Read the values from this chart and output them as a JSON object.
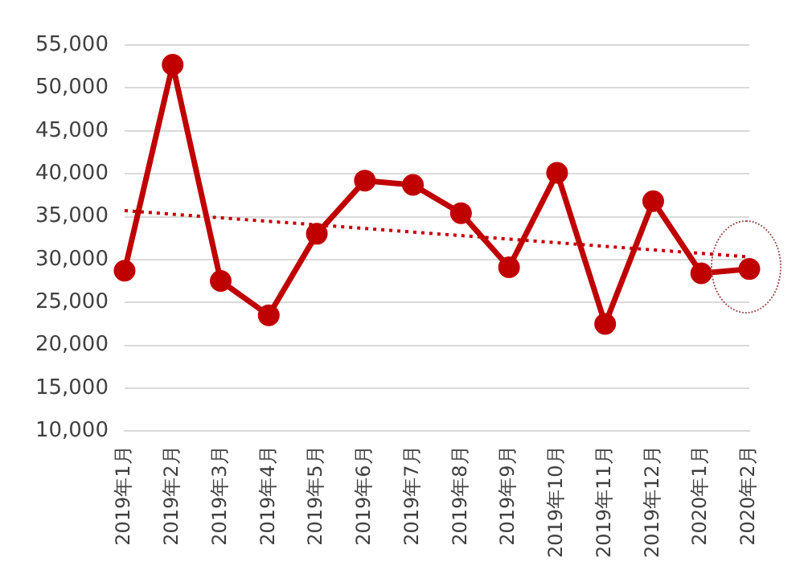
{
  "chart_data": {
    "type": "line",
    "categories": [
      "2019年1月",
      "2019年2月",
      "2019年3月",
      "2019年4月",
      "2019年5月",
      "2019年6月",
      "2019年7月",
      "2019年8月",
      "2019年9月",
      "2019年10月",
      "2019年11月",
      "2019年12月",
      "2020年1月",
      "2020年2月"
    ],
    "series": [
      {
        "color": "#c00000",
        "values": [
          28700,
          52700,
          27500,
          23500,
          33000,
          39200,
          38700,
          35400,
          29100,
          40100,
          22500,
          36800,
          28400,
          28900
        ],
        "marker": "circle",
        "line_style": "solid"
      },
      {
        "type": "line",
        "color": "#c00000",
        "values": [
          35700,
          null,
          null,
          null,
          null,
          null,
          null,
          null,
          null,
          null,
          null,
          null,
          null,
          30300
        ],
        "marker": "none",
        "line_style": "dotted"
      }
    ],
    "ylim": [
      10000,
      55000
    ],
    "yticks": [
      {
        "value": 10000,
        "label": "10,000"
      },
      {
        "value": 15000,
        "label": "15,000"
      },
      {
        "value": 20000,
        "label": "20,000"
      },
      {
        "value": 25000,
        "label": "25,000"
      },
      {
        "value": 30000,
        "label": "30,000"
      },
      {
        "value": 35000,
        "label": "35,000"
      },
      {
        "value": 40000,
        "label": "40,000"
      },
      {
        "value": 45000,
        "label": "45,000"
      },
      {
        "value": 50000,
        "label": "50,000"
      },
      {
        "value": 55000,
        "label": "55,000"
      }
    ],
    "grid": "y",
    "legend": false
  }
}
